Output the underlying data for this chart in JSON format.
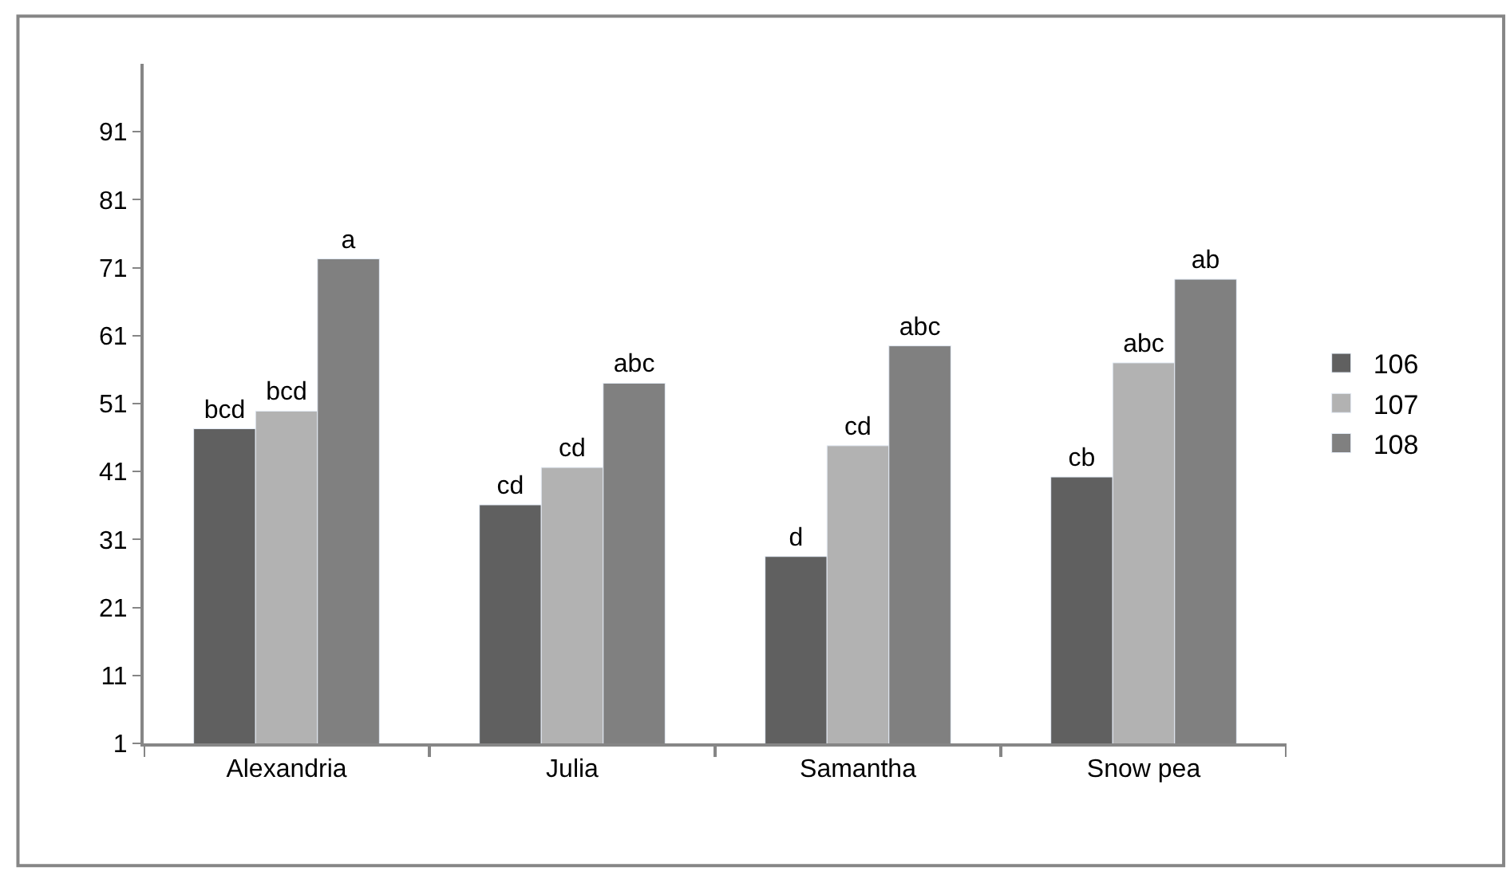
{
  "chart_data": {
    "type": "bar",
    "categories": [
      "Alexandria",
      "Julia",
      "Samantha",
      "Snow pea"
    ],
    "series": [
      {
        "name": "106",
        "color": "#606060",
        "values": [
          47.3,
          36.1,
          28.5,
          40.2
        ],
        "value_labels": [
          "bcd",
          "cd",
          "d",
          "cb"
        ]
      },
      {
        "name": "107",
        "color": "#b2b2b2",
        "values": [
          49.9,
          41.6,
          44.8,
          57.0
        ],
        "value_labels": [
          "bcd",
          "cd",
          "cd",
          "abc"
        ]
      },
      {
        "name": "108",
        "color": "#808080",
        "values": [
          72.3,
          54.0,
          59.5,
          69.3
        ],
        "value_labels": [
          "a",
          "abc",
          "abc",
          "ab"
        ]
      }
    ],
    "ylim": [
      1,
      101
    ],
    "yticks": [
      1,
      11,
      21,
      31,
      41,
      51,
      61,
      71,
      81,
      91
    ],
    "grid": false,
    "legend": "right"
  }
}
